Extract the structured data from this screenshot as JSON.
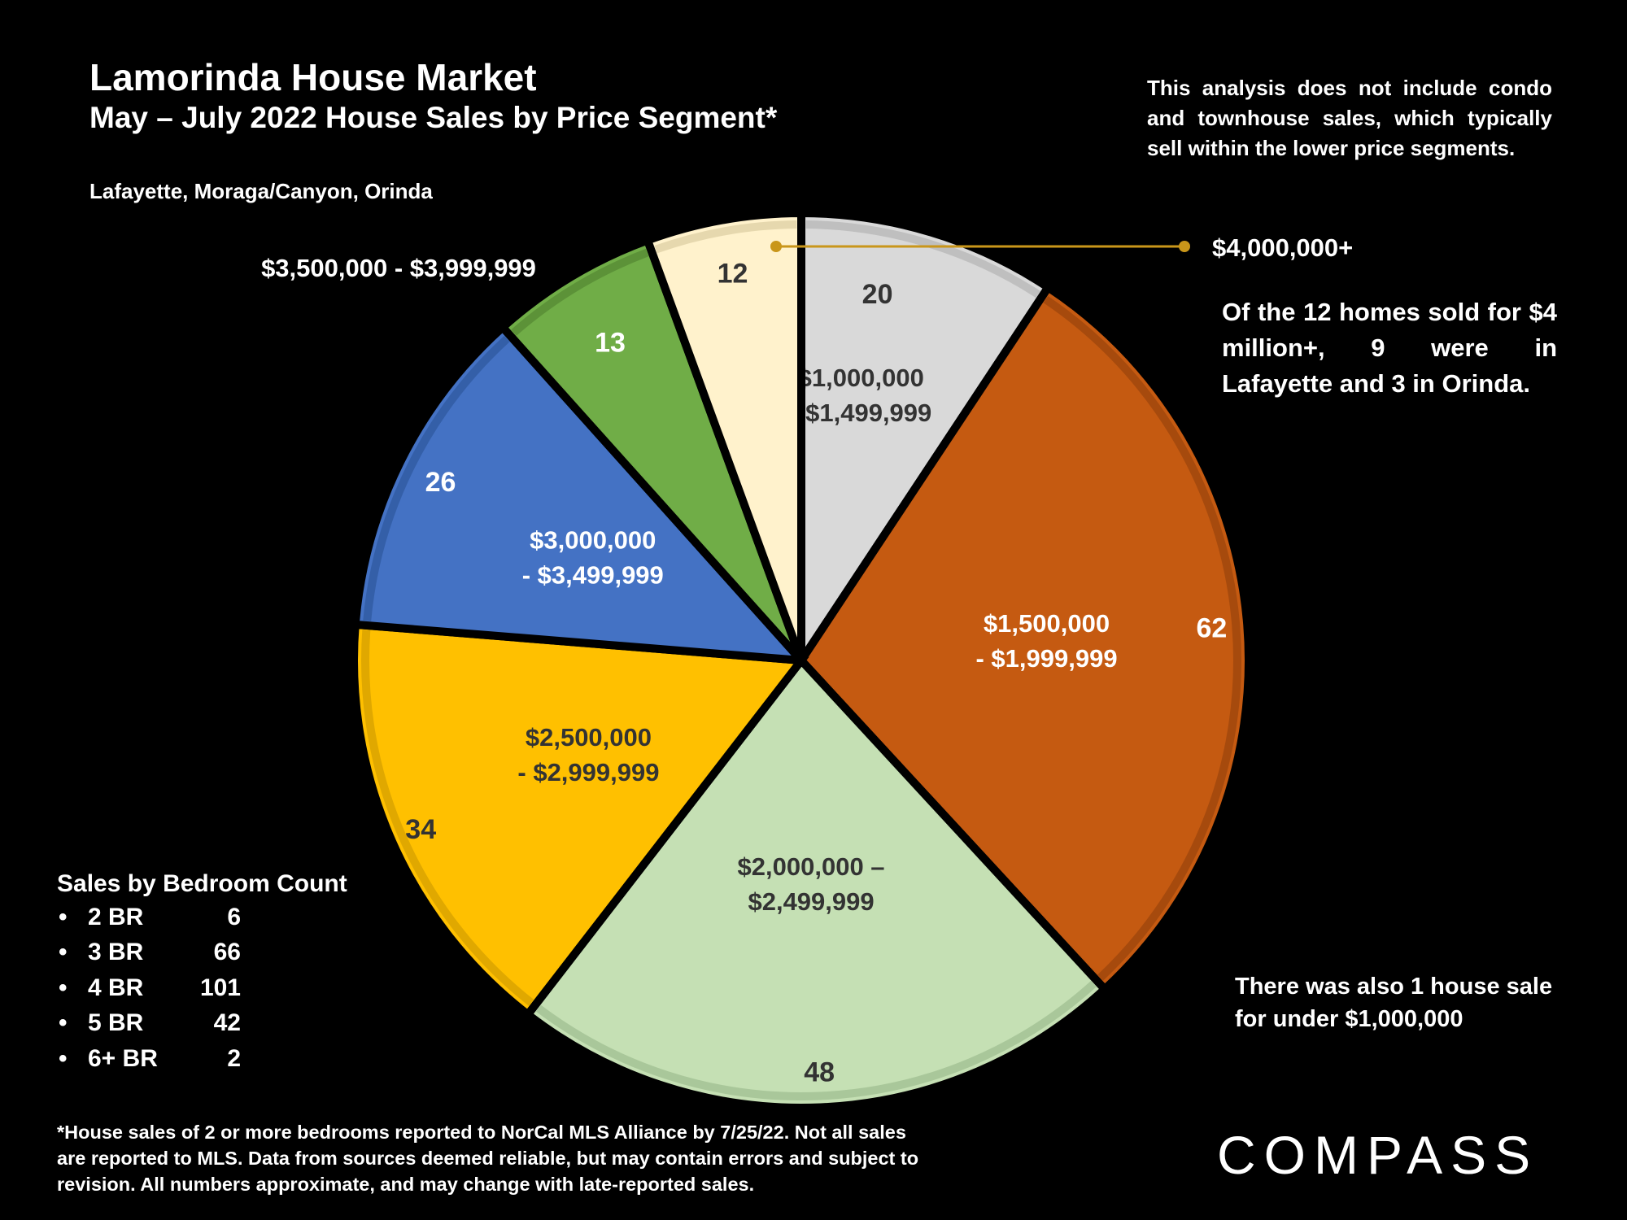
{
  "header": {
    "title": "Lamorinda House Market",
    "subtitle": "May – July 2022 House Sales by Price Segment*",
    "region": "Lafayette, Moraga/Canyon, Orinda"
  },
  "notes": {
    "top_right": "This analysis does not include condo and townhouse sales, which typically sell within the lower price segments.",
    "four_million": "Of the 12 homes sold for $4 million+, 9 were in Lafayette and 3 in Orinda.",
    "under_million": "There was also 1 house sale for under $1,000,000"
  },
  "bedrooms": {
    "title": "Sales by Bedroom Count",
    "bullet": "•",
    "items": [
      {
        "label": "2 BR",
        "value": "6"
      },
      {
        "label": "3 BR",
        "value": "66"
      },
      {
        "label": "4 BR",
        "value": "101"
      },
      {
        "label": "5 BR",
        "value": "42"
      },
      {
        "label": "6+ BR",
        "value": "2"
      }
    ]
  },
  "footnote": "*House sales of 2 or more bedrooms reported to NorCal MLS Alliance by 7/25/22. Not all sales are reported to MLS. Data from sources deemed reliable, but may contain errors and subject to revision. All numbers approximate, and may change with late-reported sales.",
  "logo": "COMPASS",
  "chart_data": {
    "type": "pie",
    "slices": [
      {
        "label_lines": [
          "$1,000,000",
          "- $1,499,999"
        ],
        "value": 20,
        "color": "#d9d9d9",
        "border": "#bfbfbf",
        "text_color": "#333333"
      },
      {
        "label_lines": [
          "$1,500,000",
          "- $1,999,999"
        ],
        "value": 62,
        "color": "#c55a11",
        "border": "#a64a0d",
        "text_color": "#ffffff"
      },
      {
        "label_lines": [
          "$2,000,000 –",
          "$2,499,999"
        ],
        "value": 48,
        "color": "#c5e0b4",
        "border": "#a9c79a",
        "text_color": "#333333"
      },
      {
        "label_lines": [
          "$2,500,000",
          "- $2,999,999"
        ],
        "value": 34,
        "color": "#ffc000",
        "border": "#e0a800",
        "text_color": "#333333"
      },
      {
        "label_lines": [
          "$3,000,000",
          "- $3,499,999"
        ],
        "value": 26,
        "color": "#4472c4",
        "border": "#345fa8",
        "text_color": "#ffffff"
      },
      {
        "label_lines": [
          "$3,500,000 - $3,999,999"
        ],
        "value": 13,
        "color": "#70ad47",
        "border": "#5c9238",
        "text_color": "#ffffff"
      },
      {
        "label_lines": [
          "$4,000,000+"
        ],
        "value": 12,
        "color": "#fff2cc",
        "border": "#e6d8ae",
        "text_color": "#333333"
      }
    ],
    "start_angle_deg": 0,
    "direction": "clockwise",
    "legend": "none"
  }
}
